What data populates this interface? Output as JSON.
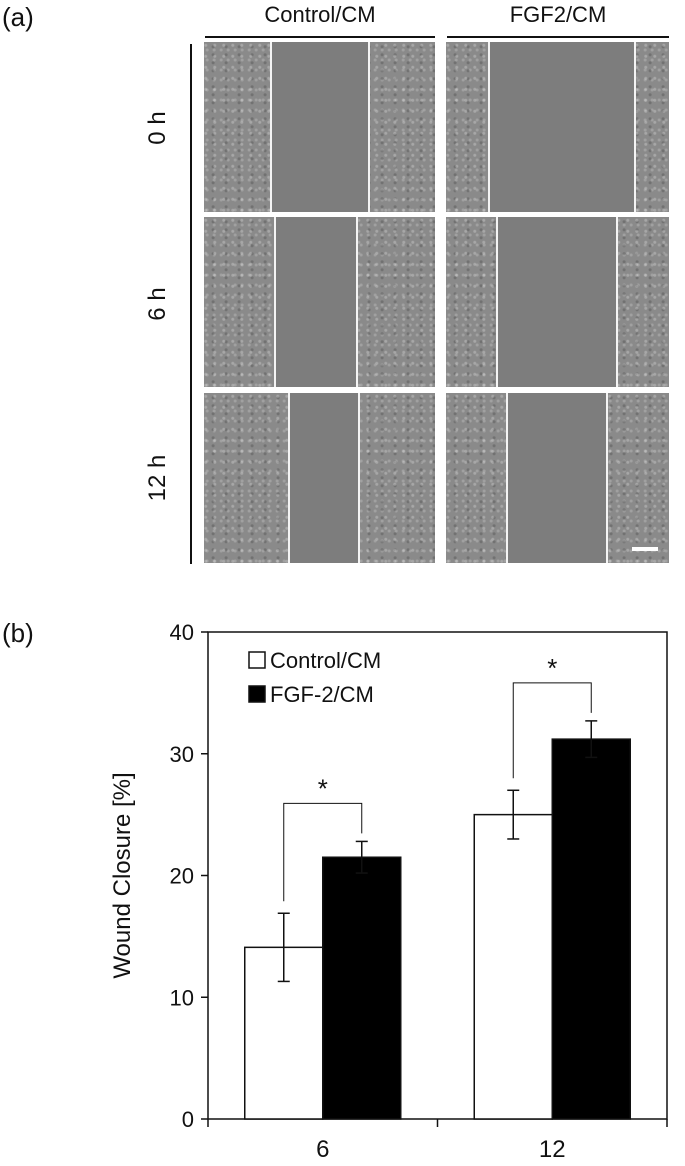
{
  "panel_a": {
    "label": "(a)",
    "columns": [
      "Control/CM",
      "FGF2/CM"
    ],
    "rows": [
      "0 h",
      "6 h",
      "12 h"
    ]
  },
  "panel_b": {
    "label": "(b)"
  },
  "chart_data": {
    "type": "bar",
    "categories": [
      "6",
      "12"
    ],
    "series": [
      {
        "name": "Control/CM",
        "values": [
          14.1,
          25.0
        ],
        "errors": [
          2.8,
          2.0
        ],
        "color": "#ffffff"
      },
      {
        "name": "FGF-2/CM",
        "values": [
          21.5,
          31.2
        ],
        "errors": [
          1.3,
          1.5
        ],
        "color": "#000000"
      }
    ],
    "ylabel": "Wound Closure [%]",
    "xlabel": "",
    "ylim": [
      0,
      40
    ],
    "yticks": [
      "0",
      "10",
      "20",
      "30",
      "40"
    ],
    "significance": [
      "*",
      "*"
    ],
    "legend_position": "top-left",
    "grid": false
  }
}
